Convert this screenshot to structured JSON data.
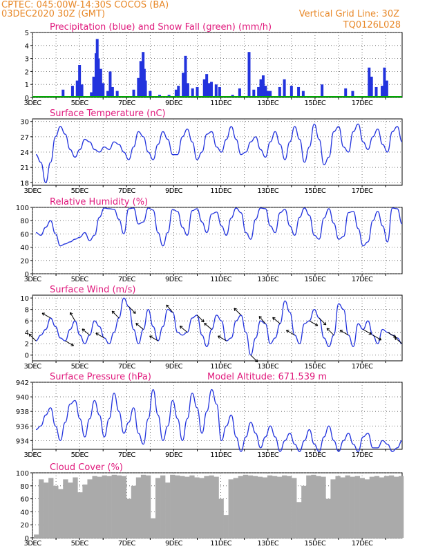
{
  "header": {
    "line1": "CPTEC:   045:00W-14:30S   COCOS (BA)",
    "line2": "03DEC2020 30Z (GMT)",
    "grid_note": "Vertical Grid Line: 30Z",
    "code": "TQ0126L028"
  },
  "colors": {
    "header": "#e8892a",
    "title": "#e0197c",
    "line": "#2233dd",
    "snow": "#00aa00",
    "cloud": "#aaaaaa",
    "grid": "#555555"
  },
  "chart_data": [
    {
      "type": "bar",
      "title": "Precipitation (blue) and Snow Fall (green) (mm/h)",
      "x_labels": [
        "3DEC",
        "5DEC",
        "7DEC",
        "9DEC",
        "11DEC",
        "13DEC",
        "15DEC",
        "17DEC"
      ],
      "ylim": [
        0,
        5
      ],
      "yticks": [
        0,
        1,
        2,
        3,
        4,
        5
      ],
      "series": [
        {
          "name": "Precipitation",
          "color": "#2233dd",
          "values": [
            {
              "day": 4.3,
              "value": 0.6
            },
            {
              "day": 4.7,
              "value": 0.9
            },
            {
              "day": 4.9,
              "value": 1.3
            },
            {
              "day": 5.0,
              "value": 2.5
            },
            {
              "day": 5.1,
              "value": 1.0
            },
            {
              "day": 5.5,
              "value": 0.4
            },
            {
              "day": 5.6,
              "value": 1.6
            },
            {
              "day": 5.7,
              "value": 3.4
            },
            {
              "day": 5.75,
              "value": 4.5
            },
            {
              "day": 5.8,
              "value": 3.0
            },
            {
              "day": 5.9,
              "value": 2.2
            },
            {
              "day": 6.0,
              "value": 1.1
            },
            {
              "day": 6.2,
              "value": 0.5
            },
            {
              "day": 6.3,
              "value": 2.0
            },
            {
              "day": 6.4,
              "value": 0.8
            },
            {
              "day": 6.6,
              "value": 0.5
            },
            {
              "day": 7.3,
              "value": 0.6
            },
            {
              "day": 7.5,
              "value": 1.5
            },
            {
              "day": 7.6,
              "value": 2.8
            },
            {
              "day": 7.7,
              "value": 3.5
            },
            {
              "day": 7.75,
              "value": 2.2
            },
            {
              "day": 7.8,
              "value": 1.3
            },
            {
              "day": 8.0,
              "value": 0.5
            },
            {
              "day": 8.4,
              "value": 0.2
            },
            {
              "day": 8.8,
              "value": 0.2
            },
            {
              "day": 9.1,
              "value": 0.6
            },
            {
              "day": 9.2,
              "value": 0.9
            },
            {
              "day": 9.4,
              "value": 1.9
            },
            {
              "day": 9.5,
              "value": 3.2
            },
            {
              "day": 9.6,
              "value": 1.1
            },
            {
              "day": 9.8,
              "value": 0.7
            },
            {
              "day": 10.0,
              "value": 0.8
            },
            {
              "day": 10.3,
              "value": 1.4
            },
            {
              "day": 10.4,
              "value": 1.8
            },
            {
              "day": 10.5,
              "value": 1.1
            },
            {
              "day": 10.6,
              "value": 1.2
            },
            {
              "day": 10.8,
              "value": 1.0
            },
            {
              "day": 10.95,
              "value": 0.8
            },
            {
              "day": 11.5,
              "value": 0.2
            },
            {
              "day": 11.8,
              "value": 0.7
            },
            {
              "day": 12.2,
              "value": 3.5
            },
            {
              "day": 12.4,
              "value": 0.6
            },
            {
              "day": 12.6,
              "value": 0.8
            },
            {
              "day": 12.7,
              "value": 1.4
            },
            {
              "day": 12.8,
              "value": 1.7
            },
            {
              "day": 12.9,
              "value": 0.9
            },
            {
              "day": 13.0,
              "value": 0.5
            },
            {
              "day": 13.1,
              "value": 0.5
            },
            {
              "day": 13.5,
              "value": 0.8
            },
            {
              "day": 13.7,
              "value": 1.4
            },
            {
              "day": 14.0,
              "value": 0.9
            },
            {
              "day": 14.3,
              "value": 0.8
            },
            {
              "day": 14.5,
              "value": 0.5
            },
            {
              "day": 15.3,
              "value": 1.0
            },
            {
              "day": 16.3,
              "value": 0.7
            },
            {
              "day": 16.6,
              "value": 0.5
            },
            {
              "day": 17.3,
              "value": 2.3
            },
            {
              "day": 17.4,
              "value": 1.6
            },
            {
              "day": 17.6,
              "value": 0.8
            },
            {
              "day": 17.85,
              "value": 0.9
            },
            {
              "day": 17.95,
              "value": 2.3
            },
            {
              "day": 18.05,
              "value": 1.3
            }
          ]
        },
        {
          "name": "Snow Fall",
          "color": "#00aa00",
          "values": "0 (green baseline)"
        }
      ]
    },
    {
      "type": "line",
      "title": "Surface Temperature (nC)",
      "x_labels": [
        "3DEC",
        "5DEC",
        "7DEC",
        "9DEC",
        "11DEC",
        "13DEC",
        "15DEC",
        "17DEC"
      ],
      "ylim": [
        17.5,
        30.5
      ],
      "yticks": [
        18,
        21,
        24,
        27,
        30
      ],
      "series": [
        {
          "color": "#2233dd",
          "values": [
            23.5,
            22.0,
            18.0,
            22.0,
            27.0,
            29.0,
            27.5,
            24.5,
            23.0,
            24.5,
            26.5,
            26.0,
            24.5,
            24.0,
            25.0,
            24.5,
            26.0,
            25.5,
            24.0,
            22.5,
            25.0,
            28.0,
            27.0,
            24.0,
            22.5,
            25.5,
            28.0,
            26.5,
            23.5,
            23.5,
            27.0,
            28.5,
            26.0,
            22.5,
            24.0,
            27.5,
            28.0,
            25.0,
            24.0,
            26.5,
            29.0,
            26.5,
            23.5,
            24.0,
            26.0,
            27.0,
            24.5,
            23.0,
            26.0,
            28.0,
            25.5,
            22.5,
            26.0,
            29.0,
            26.5,
            22.0,
            25.0,
            29.5,
            26.5,
            21.5,
            23.0,
            28.0,
            29.0,
            25.0,
            24.0,
            28.0,
            29.5,
            26.0,
            24.5,
            27.0,
            28.5,
            25.5,
            24.0,
            28.0,
            29.0,
            26.0
          ]
        }
      ]
    },
    {
      "type": "line",
      "title": "Relative Humidity (%)",
      "x_labels": [
        "3DEC",
        "5DEC",
        "7DEC",
        "9DEC",
        "11DEC",
        "13DEC",
        "15DEC",
        "17DEC"
      ],
      "ylim": [
        0,
        100
      ],
      "yticks": [
        0,
        20,
        40,
        60,
        80,
        100
      ],
      "series": [
        {
          "color": "#2233dd",
          "values": [
            62,
            58,
            70,
            80,
            60,
            42,
            45,
            48,
            52,
            55,
            62,
            50,
            58,
            85,
            99,
            98,
            97,
            82,
            60,
            98,
            99,
            75,
            78,
            99,
            96,
            62,
            42,
            62,
            97,
            94,
            70,
            58,
            95,
            98,
            78,
            62,
            90,
            93,
            72,
            58,
            84,
            99,
            92,
            62,
            52,
            82,
            99,
            98,
            72,
            62,
            92,
            97,
            72,
            58,
            85,
            99,
            88,
            58,
            52,
            84,
            98,
            76,
            52,
            56,
            92,
            94,
            68,
            42,
            48,
            80,
            94,
            72,
            48,
            99,
            98,
            75
          ]
        }
      ]
    },
    {
      "type": "line",
      "title": "Surface Wind (m/s)",
      "x_labels": [
        "3DEC",
        "5DEC",
        "7DEC",
        "9DEC",
        "11DEC",
        "13DEC",
        "15DEC",
        "17DEC"
      ],
      "ylim": [
        -1,
        10.5
      ],
      "yticks": [
        0,
        2,
        4,
        6,
        8,
        10
      ],
      "series": [
        {
          "color": "#2233dd",
          "values": [
            2.5,
            3.5,
            4.5,
            6.5,
            5.0,
            3.0,
            2.5,
            4.5,
            6.0,
            3.5,
            2.0,
            3.5,
            6.0,
            5.0,
            3.0,
            2.0,
            4.0,
            6.5,
            10.0,
            8.5,
            4.5,
            2.0,
            4.5,
            8.0,
            5.0,
            2.5,
            5.0,
            8.0,
            7.5,
            4.0,
            3.5,
            4.0,
            6.5,
            7.0,
            3.5,
            1.5,
            4.5,
            7.0,
            6.0,
            2.5,
            3.0,
            6.0,
            7.0,
            4.0,
            0.0,
            3.0,
            6.0,
            5.5,
            2.0,
            3.0,
            5.5,
            9.5,
            7.5,
            3.5,
            2.0,
            5.5,
            6.0,
            8.0,
            6.5,
            3.0,
            1.5,
            3.5,
            9.0,
            8.0,
            3.5,
            1.5,
            5.5,
            4.5,
            6.0,
            3.5,
            2.0,
            4.5,
            4.0,
            3.5,
            3.0,
            2.0
          ]
        }
      ],
      "wind_arrows": "direction barbs along series"
    },
    {
      "type": "line",
      "title": "Surface Pressure (hPa)",
      "annotation": "Model Altitude: 671.539  m",
      "x_labels": [
        "3DEC",
        "5DEC",
        "7DEC",
        "9DEC",
        "11DEC",
        "13DEC",
        "15DEC",
        "17DEC"
      ],
      "ylim": [
        932.8,
        942
      ],
      "yticks": [
        934,
        936,
        938,
        940,
        942
      ],
      "series": [
        {
          "color": "#2233dd",
          "values": [
            935.5,
            936.0,
            937.5,
            938.5,
            936.0,
            934.0,
            936.5,
            939.0,
            939.5,
            937.0,
            934.5,
            937.0,
            939.5,
            937.5,
            934.5,
            937.0,
            940.5,
            938.0,
            935.0,
            936.5,
            938.5,
            935.0,
            933.5,
            937.0,
            941.0,
            937.5,
            934.0,
            936.0,
            939.5,
            937.0,
            934.0,
            937.0,
            940.5,
            938.5,
            935.0,
            938.0,
            941.0,
            939.0,
            934.0,
            936.0,
            937.5,
            934.5,
            932.5,
            934.5,
            936.5,
            935.0,
            933.0,
            934.5,
            936.0,
            934.5,
            932.5,
            934.0,
            935.0,
            933.5,
            932.5,
            934.0,
            935.5,
            933.5,
            932.5,
            934.5,
            936.0,
            934.0,
            932.5,
            934.0,
            935.0,
            933.5,
            932.5,
            934.5,
            935.0,
            933.0,
            933.0,
            934.0,
            933.5,
            932.5,
            933.0,
            934.0
          ]
        }
      ]
    },
    {
      "type": "bar",
      "title": "Cloud Cover (%)",
      "x_labels": [
        "3DEC",
        "5DEC",
        "7DEC",
        "9DEC",
        "11DEC",
        "13DEC",
        "15DEC",
        "17DEC"
      ],
      "ylim": [
        0,
        100
      ],
      "yticks": [
        0,
        20,
        40,
        60,
        80,
        100
      ],
      "series": [
        {
          "color": "#aaaaaa",
          "values": [
            5,
            90,
            85,
            92,
            80,
            75,
            90,
            85,
            93,
            70,
            82,
            90,
            95,
            94,
            96,
            95,
            97,
            96,
            95,
            60,
            80,
            93,
            97,
            96,
            30,
            92,
            96,
            85,
            97,
            96,
            95,
            94,
            96,
            93,
            92,
            95,
            96,
            94,
            60,
            35,
            90,
            92,
            95,
            97,
            96,
            95,
            94,
            93,
            96,
            95,
            94,
            96,
            95,
            92,
            55,
            80,
            96,
            97,
            95,
            94,
            60,
            90,
            95,
            93,
            96,
            94,
            95,
            92,
            90,
            94,
            95,
            93,
            95,
            96,
            94,
            95
          ]
        }
      ]
    }
  ]
}
